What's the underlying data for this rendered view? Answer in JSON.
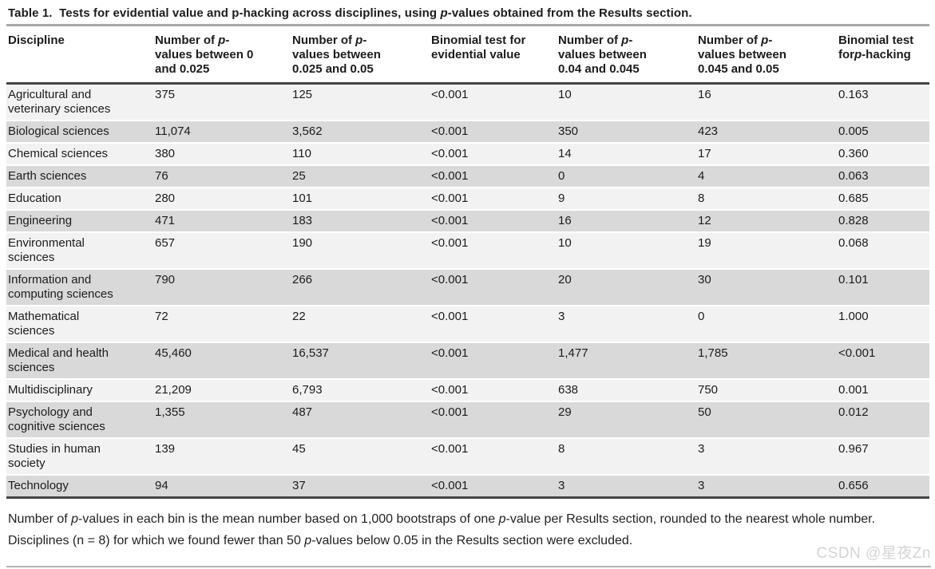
{
  "title": {
    "segments": [
      "Table 1.  Tests for evidential value and p-hacking across disciplines, using ",
      "p",
      "-values obtained from the Results section."
    ]
  },
  "table": {
    "columns": [
      {
        "segments": [
          "Discipline"
        ]
      },
      {
        "segments": [
          "Number of ",
          "p",
          "-\nvalues between 0\nand 0.025"
        ]
      },
      {
        "segments": [
          "Number of ",
          "p",
          "-\nvalues between\n0.025 and 0.05"
        ]
      },
      {
        "segments": [
          "Binomial test for\nevidential value"
        ]
      },
      {
        "segments": [
          "Number of ",
          "p",
          "-\nvalues between\n0.04 and 0.045"
        ]
      },
      {
        "segments": [
          "Number of ",
          "p",
          "-\nvalues between\n0.045 and 0.05"
        ]
      },
      {
        "segments": [
          "Binomial test\nfor",
          "p",
          "-hacking"
        ]
      }
    ],
    "rows": [
      [
        "Agricultural and\nveterinary sciences",
        "375",
        "125",
        "<0.001",
        "10",
        "16",
        "0.163"
      ],
      [
        "Biological sciences",
        "11,074",
        "3,562",
        "<0.001",
        "350",
        "423",
        "0.005"
      ],
      [
        "Chemical sciences",
        "380",
        "110",
        "<0.001",
        "14",
        "17",
        "0.360"
      ],
      [
        "Earth sciences",
        "76",
        "25",
        "<0.001",
        "0",
        "4",
        "0.063"
      ],
      [
        "Education",
        "280",
        "101",
        "<0.001",
        "9",
        "8",
        "0.685"
      ],
      [
        "Engineering",
        "471",
        "183",
        "<0.001",
        "16",
        "12",
        "0.828"
      ],
      [
        "Environmental\nsciences",
        "657",
        "190",
        "<0.001",
        "10",
        "19",
        "0.068"
      ],
      [
        "Information and\ncomputing sciences",
        "790",
        "266",
        "<0.001",
        "20",
        "30",
        "0.101"
      ],
      [
        "Mathematical\nsciences",
        "72",
        "22",
        "<0.001",
        "3",
        "0",
        "1.000"
      ],
      [
        "Medical and health\nsciences",
        "45,460",
        "16,537",
        "<0.001",
        "1,477",
        "1,785",
        "<0.001"
      ],
      [
        "Multidisciplinary",
        "21,209",
        "6,793",
        "<0.001",
        "638",
        "750",
        "0.001"
      ],
      [
        "Psychology and\ncognitive sciences",
        "1,355",
        "487",
        "<0.001",
        "29",
        "50",
        "0.012"
      ],
      [
        "Studies in human\nsociety",
        "139",
        "45",
        "<0.001",
        "8",
        "3",
        "0.967"
      ],
      [
        "Technology",
        "94",
        "37",
        "<0.001",
        "3",
        "3",
        "0.656"
      ]
    ]
  },
  "footnote": {
    "line1": [
      "Number of ",
      "p",
      "-values in each bin is the mean number based on 1,000 bootstraps of one ",
      "p",
      "-value per Results section, rounded to the nearest whole number."
    ],
    "line2": [
      "Disciplines (n = 8) for which we found fewer than 50 ",
      "p",
      "-values below 0.05 in the Results section were excluded."
    ]
  },
  "watermark": "CSDN @星夜Zn",
  "colors": {
    "row_stripe_light": "#f2f2f2",
    "row_stripe_dark": "#d9d9d9",
    "rule_dark": "#454545",
    "rule_gray": "#a8a8a8",
    "bottom_rule_gray": "#b3b3b3",
    "watermark_gray": "#d4d4d4",
    "text": "#1c1c1c"
  }
}
